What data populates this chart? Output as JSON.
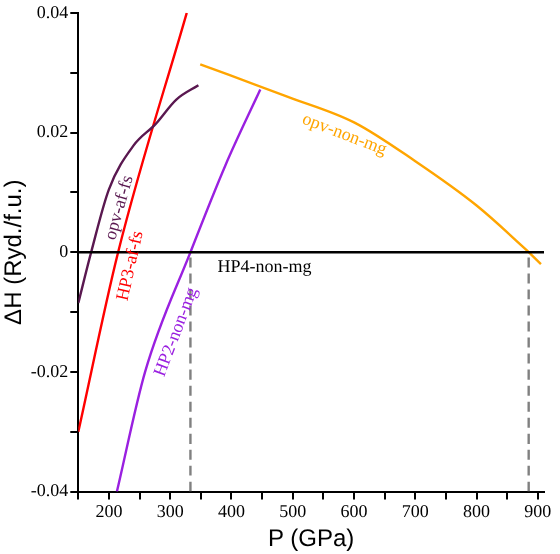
{
  "chart_data": {
    "type": "line",
    "xlabel": "P (GPa)",
    "ylabel": "ΔH (Ryd./f.u.)",
    "xlim": [
      150,
      910
    ],
    "xticks": [
      {
        "value": 150,
        "label": null
      },
      200,
      {
        "value": 250,
        "label": null
      },
      300,
      {
        "value": 350,
        "label": null
      },
      400,
      {
        "value": 450,
        "label": null
      },
      500,
      {
        "value": 550,
        "label": null
      },
      600,
      {
        "value": 650,
        "label": null
      },
      700,
      {
        "value": 750,
        "label": null
      },
      800,
      {
        "value": 850,
        "label": null
      },
      900
    ],
    "ylim": [
      -0.04,
      0.04
    ],
    "yticks": [
      -0.04,
      {
        "value": -0.03,
        "label": null
      },
      -0.02,
      {
        "value": -0.01,
        "label": null
      },
      0,
      {
        "value": 0.01,
        "label": null
      },
      0.02,
      {
        "value": 0.03,
        "label": null
      },
      0.04
    ],
    "grid": false,
    "legend": false,
    "marker": "none",
    "series": [
      {
        "name": "HP4-non-mg",
        "color": "#000000",
        "x": [
          150,
          910
        ],
        "values": [
          0,
          0
        ]
      },
      {
        "name": "opv-af-fs",
        "color": "#5a1850",
        "x": [
          150,
          171,
          200,
          240,
          276,
          310,
          346
        ],
        "values": [
          -0.0085,
          0,
          0.0105,
          0.0178,
          0.0214,
          0.0255,
          0.0279
        ]
      },
      {
        "name": "HP3-af-fs",
        "color": "#ff0000",
        "x": [
          150,
          215,
          327
        ],
        "values": [
          -0.03,
          0,
          0.04
        ]
      },
      {
        "name": "HP2-non-mg",
        "color": "#9a20e0",
        "x": [
          213,
          259,
          333,
          390,
          447
        ],
        "values": [
          -0.04,
          -0.02,
          0,
          0.0145,
          0.0272
        ]
      },
      {
        "name": "opv-non-mg",
        "color": "#ffa500",
        "x": [
          349,
          491,
          600,
          700,
          800,
          885,
          905
        ],
        "values": [
          0.0314,
          0.026,
          0.0217,
          0.0152,
          0.0078,
          0,
          -0.002
        ]
      },
      {
        "color": "#808080",
        "line_style": "dashed",
        "x": [
          333,
          333
        ],
        "values": [
          -0.04,
          0
        ]
      },
      {
        "color": "#808080",
        "line_style": "dashed",
        "x": [
          885,
          885
        ],
        "values": [
          -0.04,
          0
        ]
      }
    ]
  }
}
